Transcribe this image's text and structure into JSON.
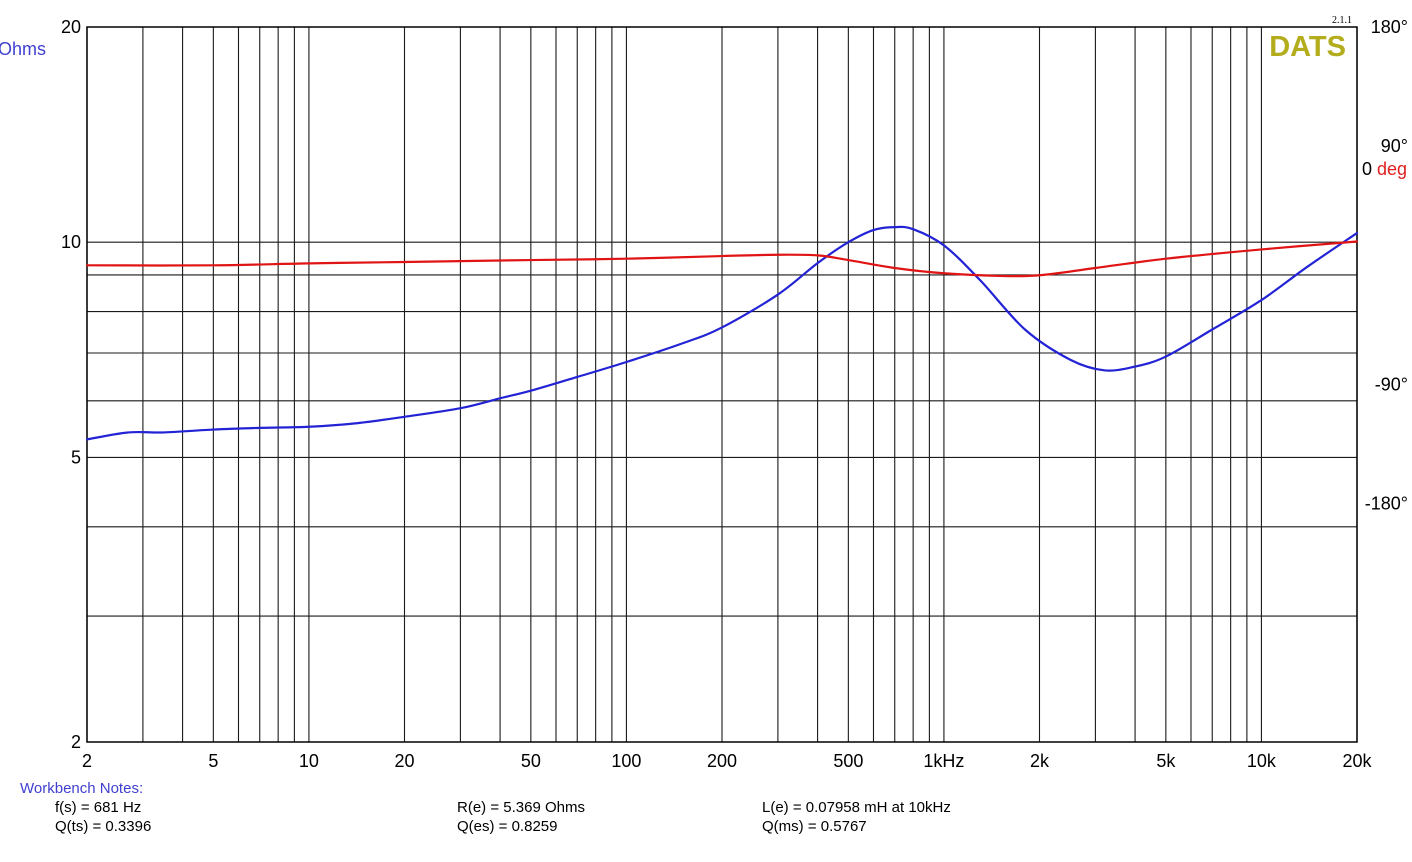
{
  "chart_data": {
    "type": "line",
    "brand": "DATS",
    "version": "2.1.1",
    "x_scale": "log",
    "x_range": [
      2,
      20000
    ],
    "x_ticks": [
      {
        "v": 2,
        "label": "2"
      },
      {
        "v": 5,
        "label": "5"
      },
      {
        "v": 10,
        "label": "10"
      },
      {
        "v": 20,
        "label": "20"
      },
      {
        "v": 50,
        "label": "50"
      },
      {
        "v": 100,
        "label": "100"
      },
      {
        "v": 200,
        "label": "200"
      },
      {
        "v": 500,
        "label": "500"
      },
      {
        "v": 1000,
        "label": "1kHz"
      },
      {
        "v": 2000,
        "label": "2k"
      },
      {
        "v": 5000,
        "label": "5k"
      },
      {
        "v": 10000,
        "label": "10k"
      },
      {
        "v": 20000,
        "label": "20k"
      }
    ],
    "y_left": {
      "label": "Ohms",
      "scale": "log",
      "range": [
        2,
        20
      ],
      "ticks": [
        {
          "v": 2,
          "label": "2"
        },
        {
          "v": 5,
          "label": "5"
        },
        {
          "v": 10,
          "label": "10"
        },
        {
          "v": 20,
          "label": "20"
        }
      ],
      "gridlines": [
        3,
        4,
        6,
        7,
        8,
        9
      ]
    },
    "y_right": {
      "label_value": "0",
      "label_unit": "deg",
      "range": [
        -360,
        180
      ],
      "ticks": [
        {
          "v": 180,
          "label": "180°"
        },
        {
          "v": 90,
          "label": "90°"
        },
        {
          "v": -90,
          "label": "-90°"
        },
        {
          "v": -180,
          "label": "-180°"
        }
      ]
    },
    "grid": true,
    "series": [
      {
        "name": "",
        "axis": "left",
        "color": "#2323d6",
        "points": [
          [
            2,
            5.3
          ],
          [
            2.7,
            5.42
          ],
          [
            3.5,
            5.42
          ],
          [
            5,
            5.47
          ],
          [
            7,
            5.5
          ],
          [
            10,
            5.52
          ],
          [
            14,
            5.58
          ],
          [
            20,
            5.7
          ],
          [
            30,
            5.86
          ],
          [
            40,
            6.05
          ],
          [
            50,
            6.2
          ],
          [
            70,
            6.48
          ],
          [
            100,
            6.8
          ],
          [
            150,
            7.22
          ],
          [
            200,
            7.6
          ],
          [
            300,
            8.45
          ],
          [
            400,
            9.35
          ],
          [
            500,
            10.0
          ],
          [
            600,
            10.4
          ],
          [
            700,
            10.5
          ],
          [
            800,
            10.43
          ],
          [
            1000,
            9.9
          ],
          [
            1300,
            8.85
          ],
          [
            1800,
            7.55
          ],
          [
            2500,
            6.85
          ],
          [
            3200,
            6.62
          ],
          [
            4000,
            6.7
          ],
          [
            5000,
            6.92
          ],
          [
            7000,
            7.55
          ],
          [
            10000,
            8.3
          ],
          [
            14000,
            9.25
          ],
          [
            20000,
            10.3
          ]
        ]
      },
      {
        "name": "",
        "axis": "right",
        "color": "#e01414",
        "points": [
          [
            2,
            0
          ],
          [
            5,
            0
          ],
          [
            10,
            1.5
          ],
          [
            20,
            2.5
          ],
          [
            50,
            4
          ],
          [
            100,
            5
          ],
          [
            200,
            7
          ],
          [
            300,
            8
          ],
          [
            400,
            7.5
          ],
          [
            500,
            4
          ],
          [
            700,
            -2
          ],
          [
            1000,
            -6
          ],
          [
            1500,
            -8
          ],
          [
            2000,
            -7.5
          ],
          [
            3000,
            -2
          ],
          [
            5000,
            5
          ],
          [
            10000,
            12
          ],
          [
            20000,
            18
          ]
        ]
      }
    ]
  },
  "notes": {
    "title": "Workbench Notes:",
    "fs": "f(s) = 681 Hz",
    "qts": "Q(ts) = 0.3396",
    "re": "R(e) = 5.369 Ohms",
    "qes": "Q(es) = 0.8259",
    "le": "L(e) = 0.07958 mH at 10kHz",
    "qms": "Q(ms) = 0.5767"
  }
}
